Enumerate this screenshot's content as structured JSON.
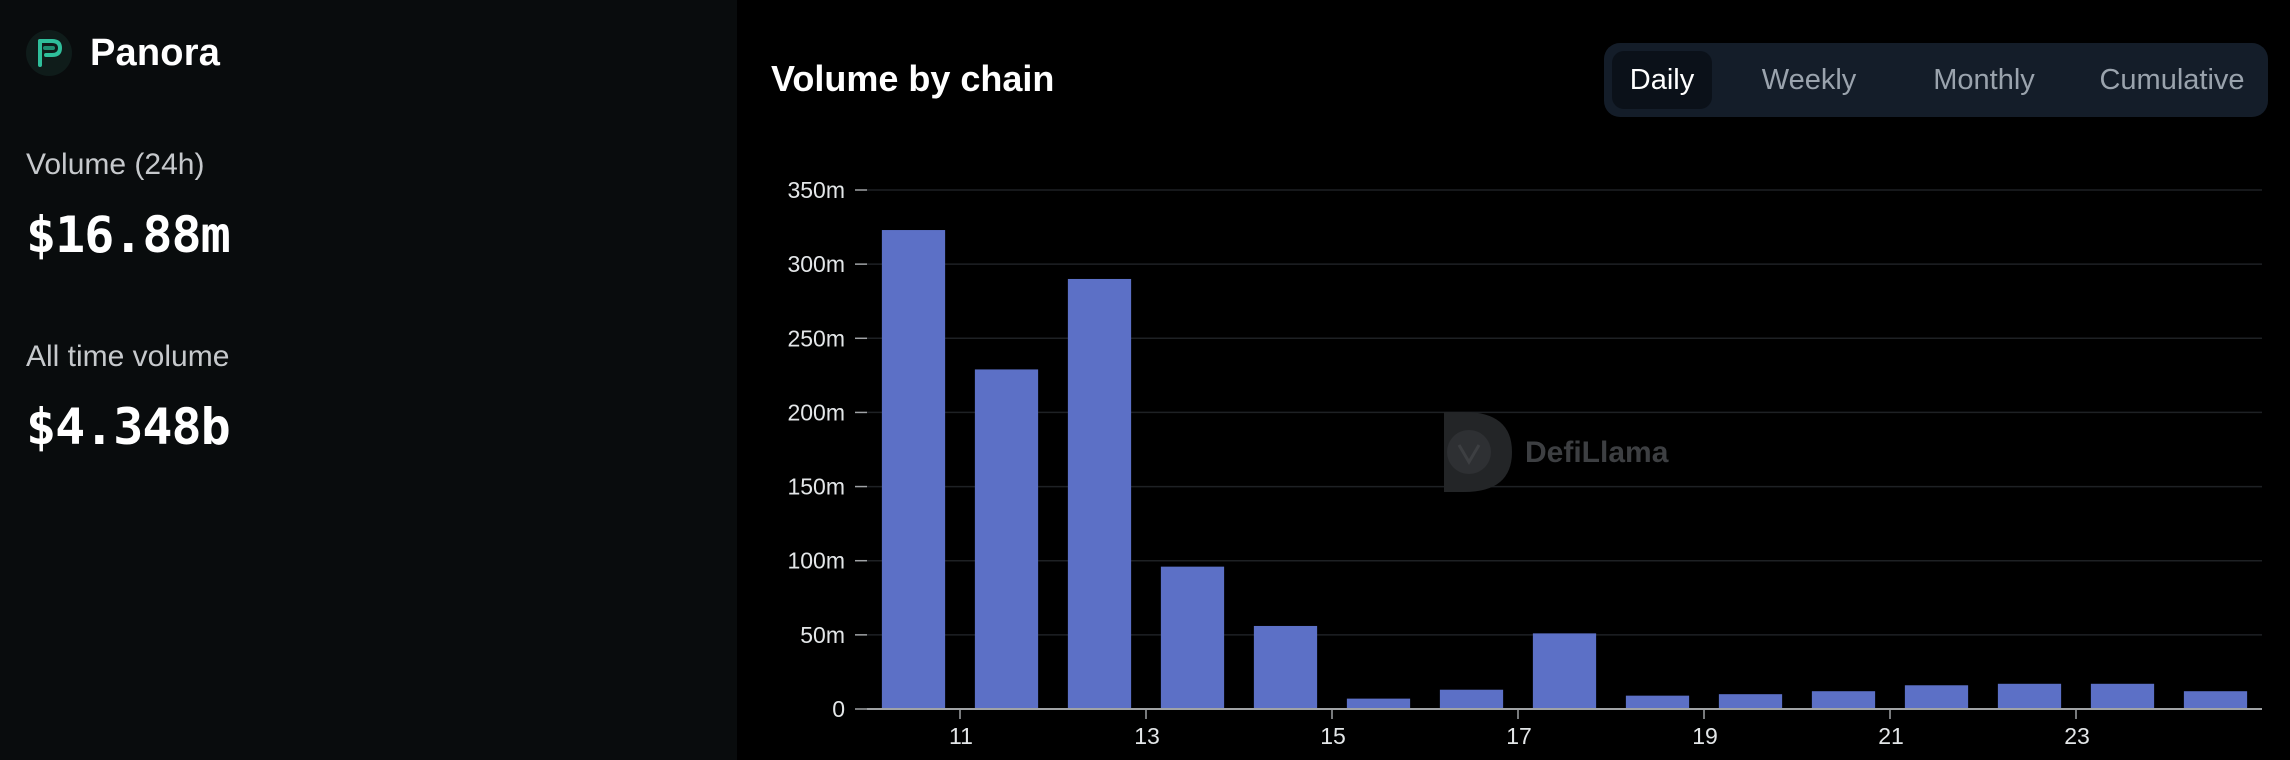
{
  "protocol": {
    "name": "Panora",
    "logo_icon": "panora-logo-icon"
  },
  "stats": {
    "volume_24h_label": "Volume (24h)",
    "volume_24h_value": "$16.88m",
    "all_time_label": "All time volume",
    "all_time_value": "$4.348b"
  },
  "chart_header": {
    "title": "Volume by chain",
    "tabs": [
      {
        "label": "Daily",
        "active": true
      },
      {
        "label": "Weekly",
        "active": false
      },
      {
        "label": "Monthly",
        "active": false
      },
      {
        "label": "Cumulative",
        "active": false
      }
    ]
  },
  "watermark": {
    "text": "DefiLlama"
  },
  "colors": {
    "bar": "#5c70c6",
    "grid": "#1e2124",
    "axis": "#a0a3a6",
    "accent_logo": "#2fbf9b"
  },
  "chart_data": {
    "type": "bar",
    "title": "Volume by chain",
    "x": [
      10,
      11,
      12,
      13,
      14,
      15,
      16,
      17,
      18,
      19,
      20,
      21,
      22,
      23,
      24
    ],
    "values": [
      323,
      229,
      290,
      96,
      56,
      7,
      13,
      51,
      9,
      10,
      12,
      16,
      17,
      17,
      12
    ],
    "value_unit": "m",
    "x_tick_values": [
      11,
      13,
      15,
      17,
      19,
      21,
      23
    ],
    "x_tick_labels": [
      "11",
      "13",
      "15",
      "17",
      "19",
      "21",
      "23"
    ],
    "y_ticks": [
      0,
      50,
      100,
      150,
      200,
      250,
      300,
      350
    ],
    "y_tick_labels": [
      "0",
      "50m",
      "100m",
      "150m",
      "200m",
      "250m",
      "300m",
      "350m"
    ],
    "ylim": [
      0,
      350
    ],
    "xlabel": "",
    "ylabel": "",
    "grid": true
  }
}
